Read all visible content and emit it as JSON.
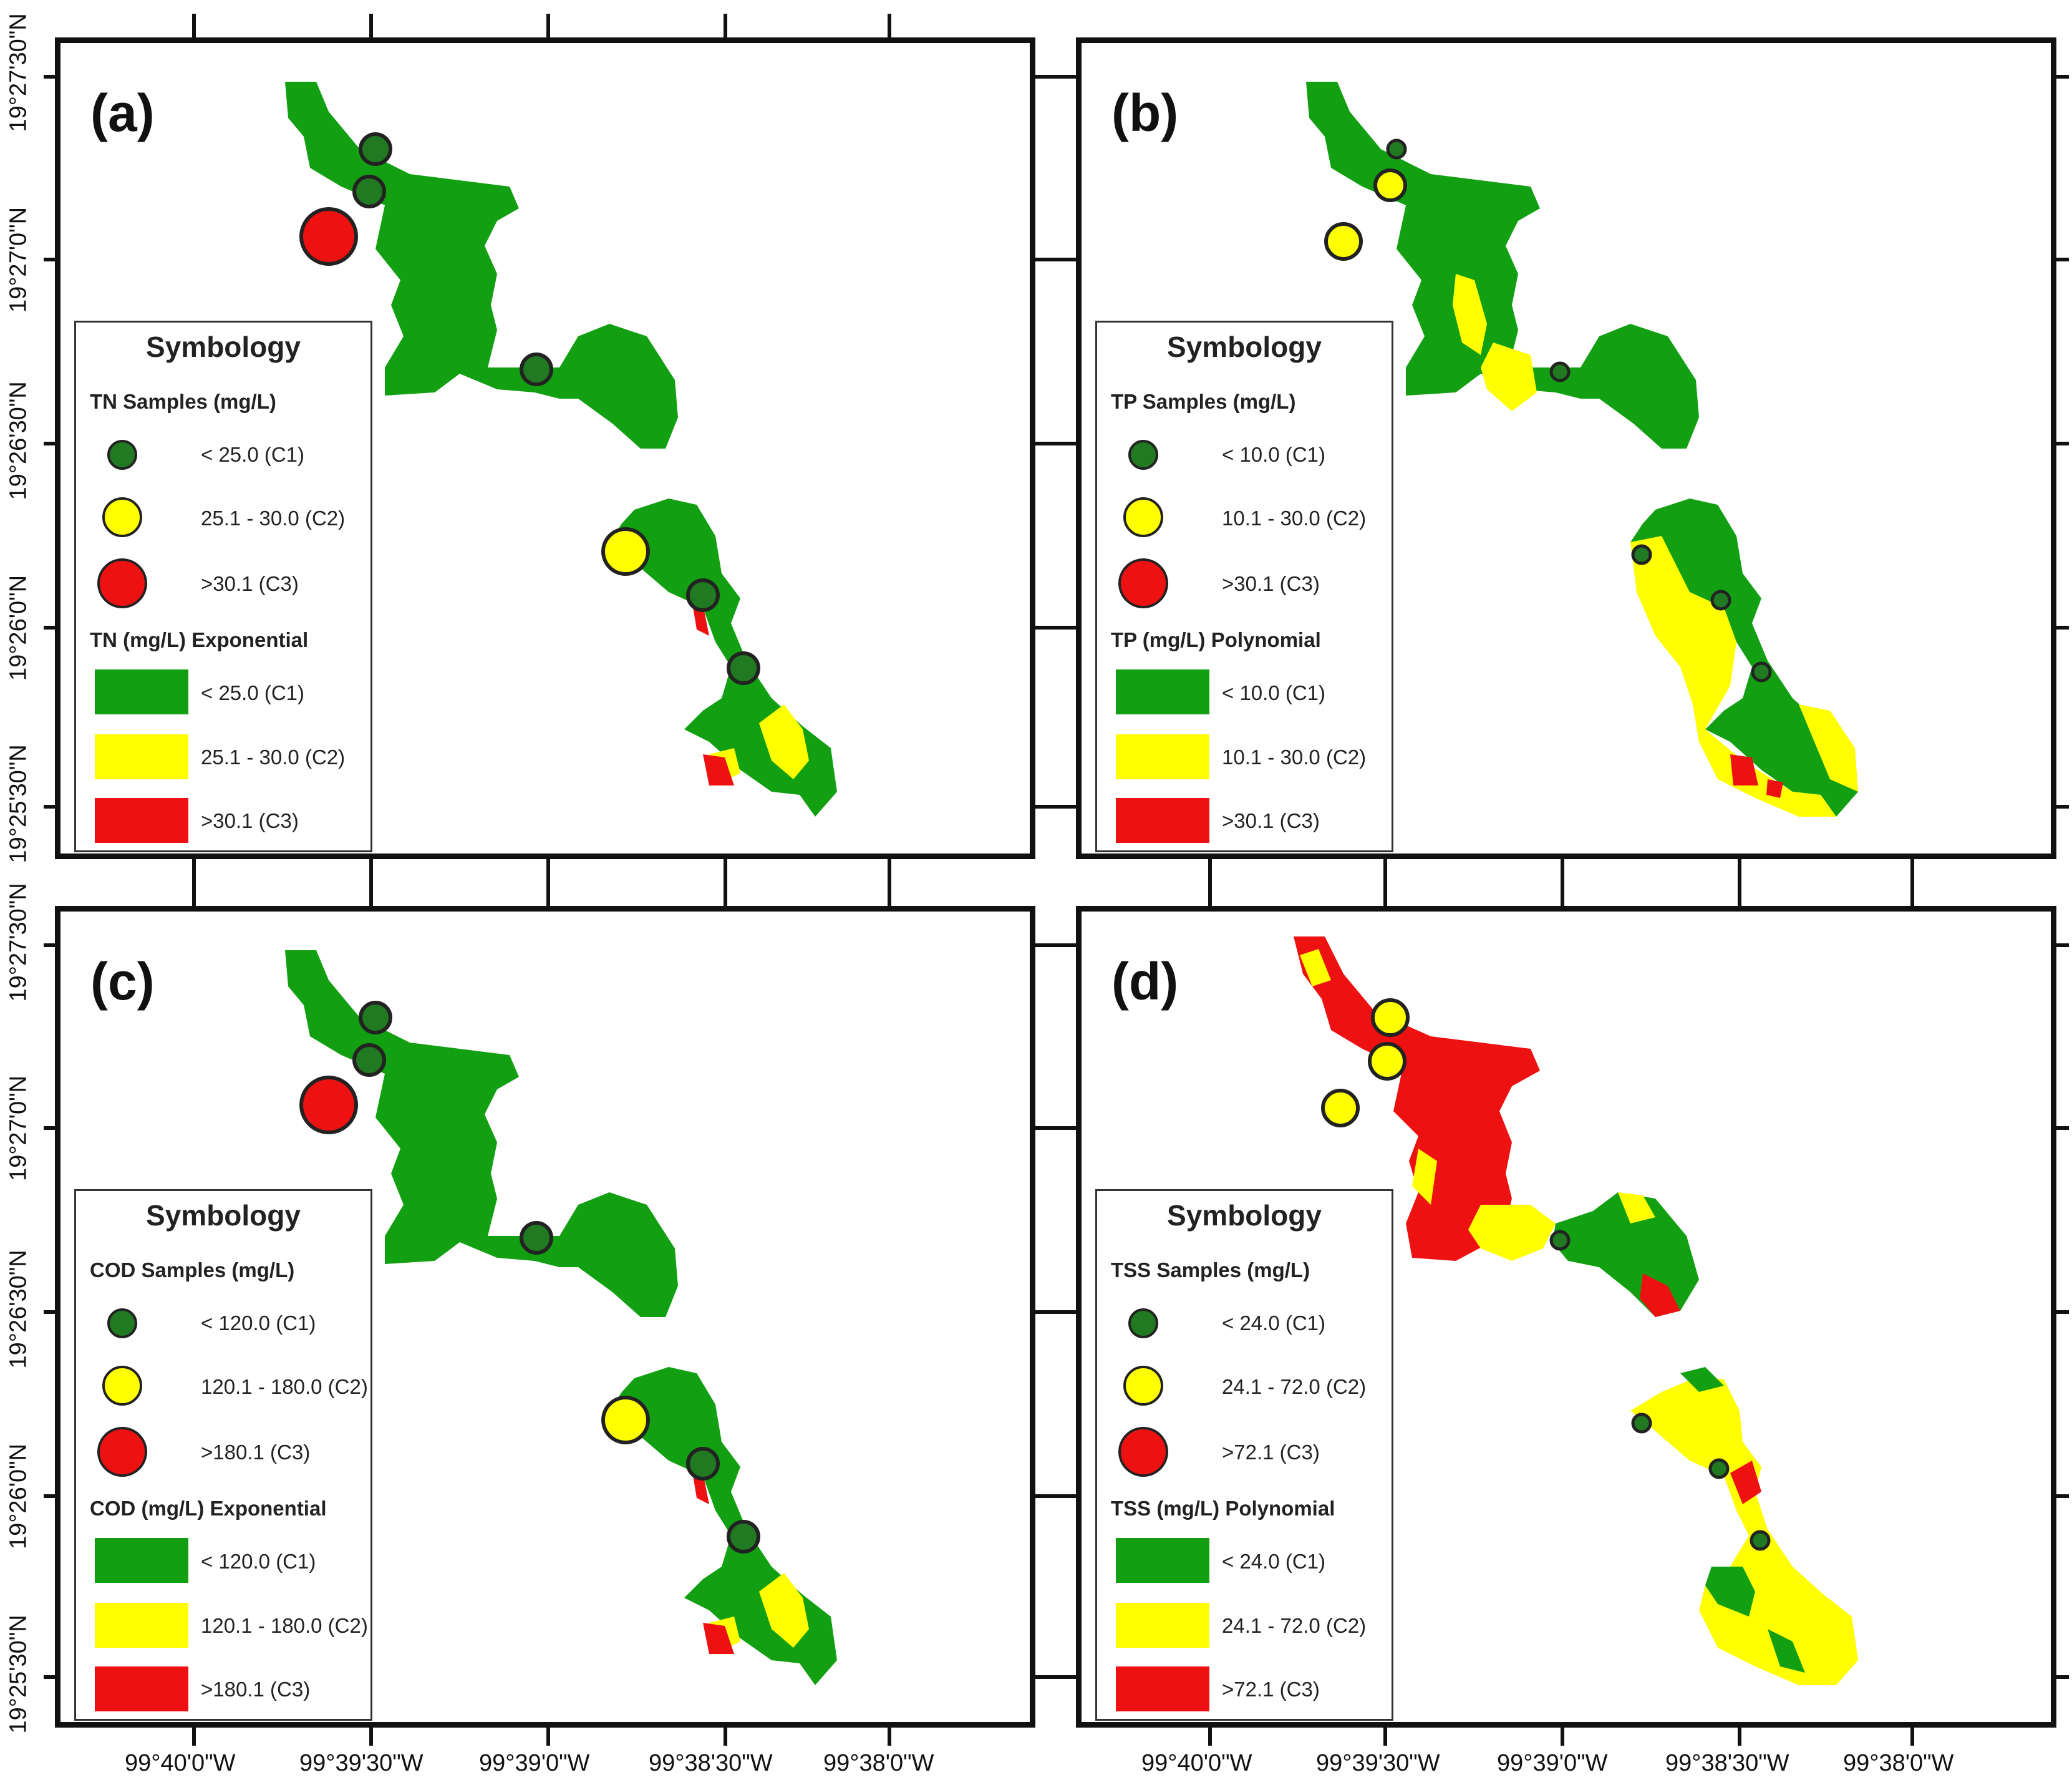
{
  "figure": {
    "colors": {
      "c1": "#12a012",
      "c2": "#ffff00",
      "c3": "#ee1111",
      "sample_c1": "#217a21"
    },
    "x_axis_labels": [
      "99°40'0\"W",
      "99°39'30\"W",
      "99°39'0\"W",
      "99°38'30\"W",
      "99°38'0\"W"
    ],
    "y_axis_labels": [
      "19°27'30\"N",
      "19°27'0\"N",
      "19°26'30\"N",
      "19°26'0\"N",
      "19°25'30\"N"
    ]
  },
  "panels": [
    {
      "label": "(a)",
      "legend": {
        "title": "Symbology",
        "samples_header": "TN Samples (mg/L)",
        "samples": [
          "< 25.0 (C1)",
          "25.1 - 30.0 (C2)",
          ">30.1 (C3)"
        ],
        "raster_header": "TN (mg/L) Exponential",
        "raster": [
          "< 25.0 (C1)",
          "25.1 - 30.0 (C2)",
          ">30.1 (C3)"
        ]
      },
      "sample_classes": [
        "C1",
        "C1",
        "C3",
        "C1",
        "C2",
        "C1",
        "C1"
      ]
    },
    {
      "label": "(b)",
      "legend": {
        "title": "Symbology",
        "samples_header": "TP Samples (mg/L)",
        "samples": [
          "< 10.0 (C1)",
          "10.1 - 30.0 (C2)",
          ">30.1 (C3)"
        ],
        "raster_header": "TP (mg/L) Polynomial",
        "raster": [
          "< 10.0 (C1)",
          "10.1 - 30.0 (C2)",
          ">30.1 (C3)"
        ]
      },
      "sample_classes": [
        "C1",
        "C2",
        "C2",
        "C1",
        "C1",
        "C1",
        "C1"
      ]
    },
    {
      "label": "(c)",
      "legend": {
        "title": "Symbology",
        "samples_header": "COD Samples (mg/L)",
        "samples": [
          "< 120.0 (C1)",
          "120.1 - 180.0 (C2)",
          ">180.1 (C3)"
        ],
        "raster_header": "COD (mg/L) Exponential",
        "raster": [
          "< 120.0 (C1)",
          "120.1 - 180.0 (C2)",
          ">180.1 (C3)"
        ]
      },
      "sample_classes": [
        "C1",
        "C1",
        "C3",
        "C1",
        "C2",
        "C1",
        "C1"
      ]
    },
    {
      "label": "(d)",
      "legend": {
        "title": "Symbology",
        "samples_header": "TSS Samples (mg/L)",
        "samples": [
          "< 24.0 (C1)",
          "24.1 - 72.0 (C2)",
          ">72.1 (C3)"
        ],
        "raster_header": "TSS (mg/L) Polynomial",
        "raster": [
          "< 24.0 (C1)",
          "24.1 - 72.0 (C2)",
          ">72.1 (C3)"
        ]
      },
      "sample_classes": [
        "C2",
        "C2",
        "C2",
        "C1",
        "C1",
        "C1",
        "C1"
      ]
    }
  ]
}
